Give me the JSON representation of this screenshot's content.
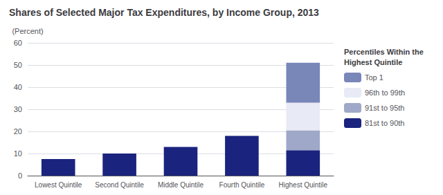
{
  "chart_data": {
    "type": "bar",
    "title": "Shares of Selected Major Tax Expenditures, by Income Group, 2013",
    "ylabel": "(Percent)",
    "categories": [
      "Lowest Quintile",
      "Second Quintile",
      "Middle Quintile",
      "Fourth Quintile",
      "Highest Quintile"
    ],
    "stacked": true,
    "series": [
      {
        "name": "81st to 90th",
        "color": "#1a237e",
        "values": [
          7.5,
          10.0,
          13.0,
          18.0,
          11.5
        ]
      },
      {
        "name": "91st to 95th",
        "color": "#9fa8c8",
        "values": [
          0,
          0,
          0,
          0,
          9.0
        ]
      },
      {
        "name": "96th to 99th",
        "color": "#e8eaf6",
        "values": [
          0,
          0,
          0,
          0,
          12.5
        ]
      },
      {
        "name": "Top 1",
        "color": "#7986b8",
        "values": [
          0,
          0,
          0,
          0,
          18.0
        ]
      }
    ],
    "legend_title": "Percentiles Within the\nHighest Quintile",
    "legend": "right",
    "ylim": [
      0,
      60
    ],
    "yticks": [
      0,
      10,
      20,
      30,
      40,
      50,
      60
    ],
    "grid": true
  }
}
